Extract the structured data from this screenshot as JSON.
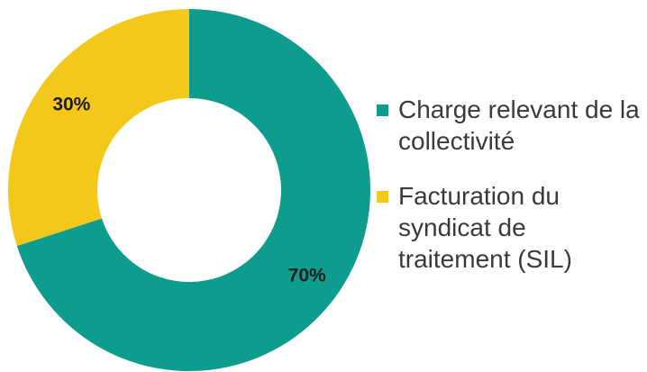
{
  "chart_data": {
    "type": "pie",
    "variant": "donut",
    "title": "",
    "categories": [
      "Charge relevant de la collectivité",
      "Facturation du syndicat de traitement (SIL)"
    ],
    "values": [
      70,
      30
    ],
    "value_labels": [
      "70%",
      "30%"
    ],
    "colors": [
      "#0e9c8f",
      "#f4c81a"
    ],
    "start_angle_deg": 0,
    "direction": "clockwise",
    "legend": {
      "placement": "right",
      "entries": [
        {
          "label": "Charge relevant de la collectivité",
          "color": "#0e9c8f"
        },
        {
          "label": "Facturation du syndicat de traitement (SIL)",
          "color": "#f4c81a"
        }
      ]
    }
  }
}
